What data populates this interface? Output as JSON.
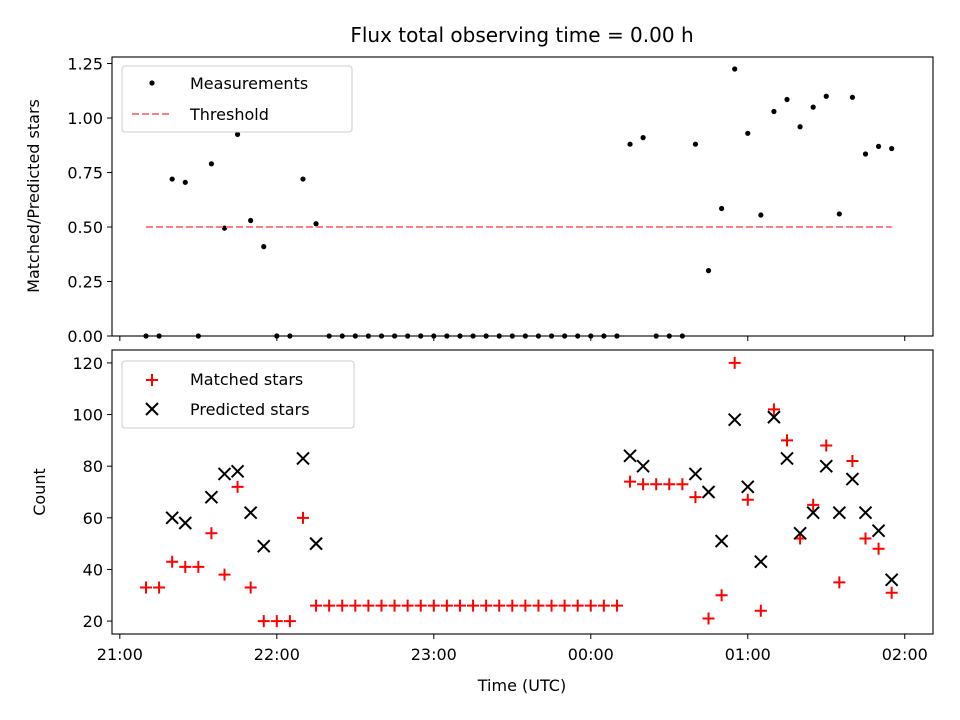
{
  "chart_data": [
    {
      "type": "scatter",
      "title": "Flux total observing time = 0.00 h",
      "xlabel": "",
      "ylabel": "Matched/Predicted stars",
      "ylim": [
        0,
        1.28
      ],
      "yticks": [
        0,
        0.25,
        0.5,
        0.75,
        1.0,
        1.25
      ],
      "ytick_labels": [
        "0.00",
        "0.25",
        "0.50",
        "0.75",
        "1.00",
        "1.25"
      ],
      "x_unit": "hours since 21:00 UTC",
      "xlim": [
        -0.05,
        5.18
      ],
      "grid": false,
      "legend_position": "top-left",
      "series": [
        {
          "name": "Measurements",
          "marker": "dot",
          "color": "#000000",
          "points": [
            [
              0.1667,
              0.0
            ],
            [
              0.25,
              0.0
            ],
            [
              0.3333,
              0.72
            ],
            [
              0.4167,
              0.705
            ],
            [
              0.5,
              0.0
            ],
            [
              0.5833,
              0.79
            ],
            [
              0.6667,
              0.495
            ],
            [
              0.75,
              0.925
            ],
            [
              0.8333,
              0.53
            ],
            [
              0.9167,
              0.41
            ],
            [
              1.0,
              0.0
            ],
            [
              1.0833,
              0.0
            ],
            [
              1.1667,
              0.72
            ],
            [
              1.25,
              0.515
            ],
            [
              1.3333,
              0.0
            ],
            [
              1.4167,
              0.0
            ],
            [
              1.5,
              0.0
            ],
            [
              1.5833,
              0.0
            ],
            [
              1.6667,
              0.0
            ],
            [
              1.75,
              0.0
            ],
            [
              1.8333,
              0.0
            ],
            [
              1.9167,
              0.0
            ],
            [
              2.0,
              0.0
            ],
            [
              2.0833,
              0.0
            ],
            [
              2.1667,
              0.0
            ],
            [
              2.25,
              0.0
            ],
            [
              2.3333,
              0.0
            ],
            [
              2.4167,
              0.0
            ],
            [
              2.5,
              0.0
            ],
            [
              2.5833,
              0.0
            ],
            [
              2.6667,
              0.0
            ],
            [
              2.75,
              0.0
            ],
            [
              2.8333,
              0.0
            ],
            [
              2.9167,
              0.0
            ],
            [
              3.0,
              0.0
            ],
            [
              3.0833,
              0.0
            ],
            [
              3.1667,
              0.0
            ],
            [
              3.25,
              0.88
            ],
            [
              3.3333,
              0.91
            ],
            [
              3.4167,
              0.0
            ],
            [
              3.5,
              0.0
            ],
            [
              3.5833,
              0.0
            ],
            [
              3.6667,
              0.88
            ],
            [
              3.75,
              0.3
            ],
            [
              3.8333,
              0.585
            ],
            [
              3.9167,
              1.225
            ],
            [
              4.0,
              0.93
            ],
            [
              4.0833,
              0.555
            ],
            [
              4.1667,
              1.03
            ],
            [
              4.25,
              1.085
            ],
            [
              4.3333,
              0.96
            ],
            [
              4.4167,
              1.05
            ],
            [
              4.5,
              1.1
            ],
            [
              4.5833,
              0.56
            ],
            [
              4.6667,
              1.095
            ],
            [
              4.75,
              0.835
            ],
            [
              4.8333,
              0.87
            ],
            [
              4.9167,
              0.86
            ]
          ]
        },
        {
          "name": "Threshold",
          "marker": "dashed-line",
          "color": "#ff7f7f",
          "points": [
            [
              0.1667,
              0.5
            ],
            [
              4.9167,
              0.5
            ]
          ]
        }
      ]
    },
    {
      "type": "scatter",
      "title": "",
      "xlabel": "Time (UTC)",
      "ylabel": "Count",
      "ylim": [
        15,
        125
      ],
      "yticks": [
        20,
        40,
        60,
        80,
        100,
        120
      ],
      "ytick_labels": [
        "20",
        "40",
        "60",
        "80",
        "100",
        "120"
      ],
      "x_unit": "hours since 21:00 UTC",
      "xlim": [
        -0.05,
        5.18
      ],
      "xticks": [
        0,
        1,
        2,
        3,
        4,
        5
      ],
      "xtick_labels": [
        "21:00",
        "22:00",
        "23:00",
        "00:00",
        "01:00",
        "02:00"
      ],
      "grid": false,
      "legend_position": "top-left",
      "series": [
        {
          "name": "Matched stars",
          "marker": "plus",
          "color": "#ff0000",
          "points": [
            [
              0.1667,
              33
            ],
            [
              0.25,
              33
            ],
            [
              0.3333,
              43
            ],
            [
              0.4167,
              41
            ],
            [
              0.5,
              41
            ],
            [
              0.5833,
              54
            ],
            [
              0.6667,
              38
            ],
            [
              0.75,
              72
            ],
            [
              0.8333,
              33
            ],
            [
              0.9167,
              20
            ],
            [
              1.0,
              20
            ],
            [
              1.0833,
              20
            ],
            [
              1.1667,
              60
            ],
            [
              1.25,
              26
            ],
            [
              1.3333,
              26
            ],
            [
              1.4167,
              26
            ],
            [
              1.5,
              26
            ],
            [
              1.5833,
              26
            ],
            [
              1.6667,
              26
            ],
            [
              1.75,
              26
            ],
            [
              1.8333,
              26
            ],
            [
              1.9167,
              26
            ],
            [
              2.0,
              26
            ],
            [
              2.0833,
              26
            ],
            [
              2.1667,
              26
            ],
            [
              2.25,
              26
            ],
            [
              2.3333,
              26
            ],
            [
              2.4167,
              26
            ],
            [
              2.5,
              26
            ],
            [
              2.5833,
              26
            ],
            [
              2.6667,
              26
            ],
            [
              2.75,
              26
            ],
            [
              2.8333,
              26
            ],
            [
              2.9167,
              26
            ],
            [
              3.0,
              26
            ],
            [
              3.0833,
              26
            ],
            [
              3.1667,
              26
            ],
            [
              3.25,
              74
            ],
            [
              3.3333,
              73
            ],
            [
              3.4167,
              73
            ],
            [
              3.5,
              73
            ],
            [
              3.5833,
              73
            ],
            [
              3.6667,
              68
            ],
            [
              3.75,
              21
            ],
            [
              3.8333,
              30
            ],
            [
              3.9167,
              120
            ],
            [
              4.0,
              67
            ],
            [
              4.0833,
              24
            ],
            [
              4.1667,
              102
            ],
            [
              4.25,
              90
            ],
            [
              4.3333,
              52
            ],
            [
              4.4167,
              65
            ],
            [
              4.5,
              88
            ],
            [
              4.5833,
              35
            ],
            [
              4.6667,
              82
            ],
            [
              4.75,
              52
            ],
            [
              4.8333,
              48
            ],
            [
              4.9167,
              31
            ]
          ]
        },
        {
          "name": "Predicted stars",
          "marker": "x",
          "color": "#000000",
          "points": [
            [
              0.3333,
              60
            ],
            [
              0.4167,
              58
            ],
            [
              0.5833,
              68
            ],
            [
              0.6667,
              77
            ],
            [
              0.75,
              78
            ],
            [
              0.8333,
              62
            ],
            [
              0.9167,
              49
            ],
            [
              1.1667,
              83
            ],
            [
              1.25,
              50
            ],
            [
              3.25,
              84
            ],
            [
              3.3333,
              80
            ],
            [
              3.6667,
              77
            ],
            [
              3.75,
              70
            ],
            [
              3.8333,
              51
            ],
            [
              3.9167,
              98
            ],
            [
              4.0,
              72
            ],
            [
              4.0833,
              43
            ],
            [
              4.1667,
              99
            ],
            [
              4.25,
              83
            ],
            [
              4.3333,
              54
            ],
            [
              4.4167,
              62
            ],
            [
              4.5,
              80
            ],
            [
              4.5833,
              62
            ],
            [
              4.6667,
              75
            ],
            [
              4.75,
              62
            ],
            [
              4.8333,
              55
            ],
            [
              4.9167,
              36
            ]
          ]
        }
      ]
    }
  ]
}
